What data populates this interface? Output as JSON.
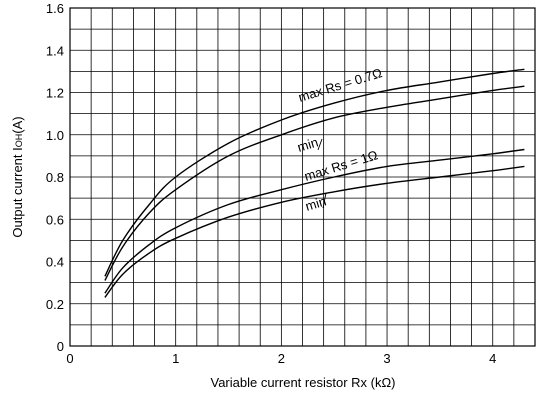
{
  "chart_data": {
    "type": "line",
    "title": "",
    "xlabel": "Variable current resistor Rx (kΩ)",
    "ylabel_main": "Output current I",
    "ylabel_sub": "OH",
    "ylabel_unit": "(A)",
    "xlim": [
      0,
      4.4
    ],
    "ylim": [
      0,
      1.6
    ],
    "x_ticks": [
      0,
      1,
      2,
      3,
      4
    ],
    "y_ticks": [
      0,
      0.2,
      0.4,
      0.6,
      0.8,
      1.0,
      1.2,
      1.4,
      1.6
    ],
    "x_tick_labels": [
      "0",
      "1",
      "2",
      "3",
      "4"
    ],
    "y_tick_labels": [
      "0",
      "0.2",
      "0.4",
      "0.6",
      "0.8",
      "1.0",
      "1.2",
      "1.4",
      "1.6"
    ],
    "grid": true,
    "x_grid_step": 0.2,
    "series": [
      {
        "name": "max Rs = 0.7Ω",
        "x": [
          0.33,
          0.5,
          0.75,
          1.0,
          1.5,
          2.0,
          2.5,
          3.0,
          3.5,
          4.0,
          4.3
        ],
        "y": [
          0.33,
          0.5,
          0.67,
          0.8,
          0.96,
          1.07,
          1.15,
          1.21,
          1.25,
          1.29,
          1.31
        ]
      },
      {
        "name": "min",
        "x": [
          0.33,
          0.5,
          0.75,
          1.0,
          1.5,
          2.0,
          2.5,
          3.0,
          3.5,
          4.0,
          4.3
        ],
        "y": [
          0.31,
          0.47,
          0.63,
          0.74,
          0.9,
          1.0,
          1.08,
          1.13,
          1.17,
          1.21,
          1.23
        ]
      },
      {
        "name": "max Rs = 1Ω",
        "x": [
          0.33,
          0.5,
          0.75,
          1.0,
          1.5,
          2.0,
          2.5,
          3.0,
          3.5,
          4.0,
          4.3
        ],
        "y": [
          0.25,
          0.37,
          0.48,
          0.56,
          0.67,
          0.74,
          0.8,
          0.85,
          0.88,
          0.91,
          0.93
        ]
      },
      {
        "name": "min",
        "x": [
          0.33,
          0.5,
          0.75,
          1.0,
          1.5,
          2.0,
          2.5,
          3.0,
          3.5,
          4.0,
          4.3
        ],
        "y": [
          0.23,
          0.34,
          0.44,
          0.51,
          0.61,
          0.68,
          0.73,
          0.77,
          0.8,
          0.83,
          0.85
        ]
      }
    ]
  }
}
